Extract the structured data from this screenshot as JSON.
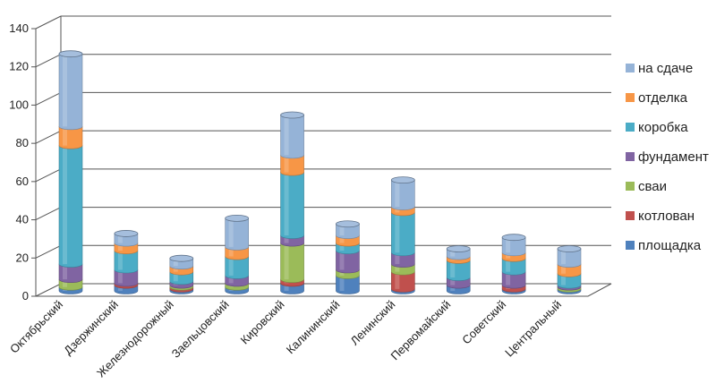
{
  "chart_data": {
    "type": "bar",
    "stacked": true,
    "style": "3d-cylinder",
    "categories": [
      "Октябрьский",
      "Дзержинский",
      "Железнодорожный",
      "Заельцовский",
      "Кировский",
      "Калининский",
      "Ленинский",
      "Первомайский",
      "Советский",
      "Центральный"
    ],
    "series": [
      {
        "name": "площадка",
        "color": "#4f81bd",
        "values": [
          2,
          3,
          1,
          2,
          4,
          8,
          1,
          3,
          1,
          1
        ]
      },
      {
        "name": "котлован",
        "color": "#c0504d",
        "values": [
          0,
          1,
          1,
          0,
          2,
          0,
          9,
          0,
          2,
          0
        ]
      },
      {
        "name": "сваи",
        "color": "#9bbb59",
        "values": [
          4,
          0,
          1,
          2,
          19,
          3,
          4,
          0,
          0,
          1
        ]
      },
      {
        "name": "фундамент",
        "color": "#8064a2",
        "values": [
          8,
          7,
          2,
          4,
          4,
          10,
          6,
          4,
          7,
          1
        ]
      },
      {
        "name": "коробка",
        "color": "#4bacc6",
        "values": [
          62,
          10,
          5,
          10,
          33,
          4,
          21,
          9,
          7,
          6
        ]
      },
      {
        "name": "отделка",
        "color": "#f79646",
        "values": [
          10,
          4,
          3,
          5,
          9,
          4,
          3,
          2,
          3,
          5
        ]
      },
      {
        "name": "на сдаче",
        "color": "#95b3d7",
        "values": [
          38,
          5,
          4,
          15,
          21,
          6,
          14,
          4,
          8,
          8
        ]
      }
    ],
    "ylim": [
      0,
      140
    ],
    "yticks": [
      0,
      20,
      40,
      60,
      80,
      100,
      120,
      140
    ],
    "grid": true,
    "legend_position": "right",
    "legend_order": [
      "на сдаче",
      "отделка",
      "коробка",
      "фундамент",
      "сваи",
      "котлован",
      "площадка"
    ]
  }
}
